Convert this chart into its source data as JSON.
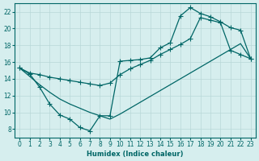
{
  "xlabel": "Humidex (Indice chaleur)",
  "bg_color": "#d6eeee",
  "grid_color": "#b8d8d8",
  "line_color": "#006666",
  "xlim": [
    -0.5,
    23.5
  ],
  "ylim": [
    7,
    23
  ],
  "xticks": [
    0,
    1,
    2,
    3,
    4,
    5,
    6,
    7,
    8,
    9,
    10,
    11,
    12,
    13,
    14,
    15,
    16,
    17,
    18,
    19,
    20,
    21,
    22,
    23
  ],
  "yticks": [
    8,
    10,
    12,
    14,
    16,
    18,
    20,
    22
  ],
  "line1_x": [
    0,
    1,
    2,
    3,
    4,
    5,
    6,
    7,
    8,
    9,
    10,
    11,
    12,
    13,
    14,
    15,
    16,
    17,
    18,
    19,
    20,
    21,
    22,
    23
  ],
  "line1_y": [
    15.3,
    14.6,
    13.0,
    11.0,
    9.7,
    9.2,
    8.2,
    7.8,
    9.6,
    9.6,
    16.1,
    16.2,
    16.3,
    16.5,
    17.7,
    18.3,
    21.5,
    22.5,
    21.8,
    21.4,
    20.8,
    20.1,
    19.8,
    16.4
  ],
  "line2_x": [
    0,
    2,
    3,
    4,
    5,
    6,
    7,
    8,
    9,
    10,
    11,
    12,
    13,
    14,
    15,
    16,
    17,
    18,
    19,
    20,
    21,
    22,
    23
  ],
  "line2_y": [
    15.3,
    13.3,
    12.4,
    11.6,
    11.0,
    10.5,
    10.0,
    9.6,
    9.2,
    9.8,
    10.5,
    11.2,
    11.9,
    12.6,
    13.3,
    14.0,
    14.7,
    15.4,
    16.1,
    16.8,
    17.5,
    18.2,
    16.4
  ],
  "line3_x": [
    0,
    1,
    2,
    3,
    4,
    5,
    6,
    7,
    8,
    9,
    10,
    11,
    12,
    13,
    14,
    15,
    16,
    17,
    18,
    19,
    20,
    21,
    22,
    23
  ],
  "line3_y": [
    15.3,
    14.7,
    14.5,
    14.2,
    14.0,
    13.8,
    13.6,
    13.4,
    13.2,
    13.5,
    14.5,
    15.2,
    15.7,
    16.2,
    16.9,
    17.5,
    18.1,
    18.8,
    21.3,
    21.0,
    20.7,
    17.4,
    16.9,
    16.4
  ]
}
